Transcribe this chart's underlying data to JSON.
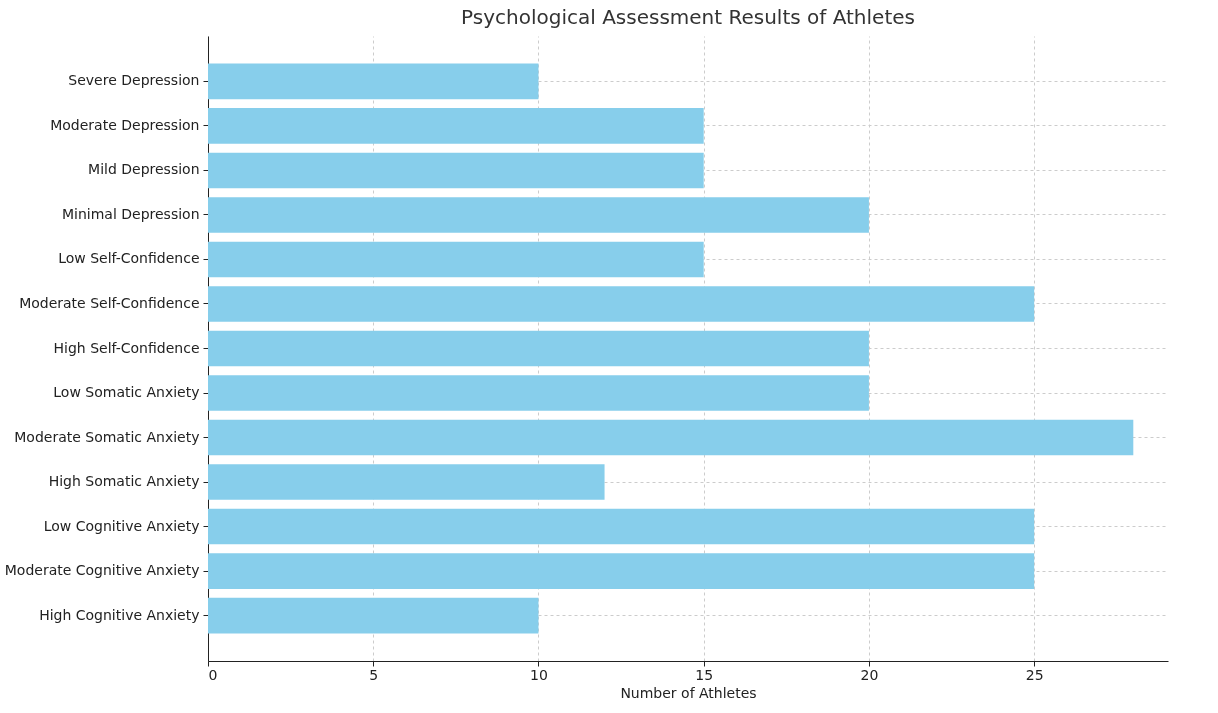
{
  "chart_data": {
    "type": "bar",
    "orientation": "horizontal",
    "title": "Psychological Assessment Results of Athletes",
    "xlabel": "Number of Athletes",
    "categories": [
      "Severe Depression",
      "Moderate Depression",
      "Mild Depression",
      "Minimal Depression",
      "Low Self-Confidence",
      "Moderate Self-Confidence",
      "High Self-Confidence",
      "Low Somatic Anxiety",
      "Moderate Somatic Anxiety",
      "High Somatic Anxiety",
      "Low Cognitive Anxiety",
      "Moderate Cognitive Anxiety",
      "High Cognitive Anxiety"
    ],
    "values": [
      10,
      15,
      15,
      20,
      15,
      25,
      20,
      20,
      28,
      12,
      25,
      25,
      10
    ],
    "color": "#87ceeb",
    "xlim": [
      0,
      29.05
    ],
    "xticks": [
      0,
      5,
      10,
      15,
      20,
      25
    ],
    "grid": true
  }
}
